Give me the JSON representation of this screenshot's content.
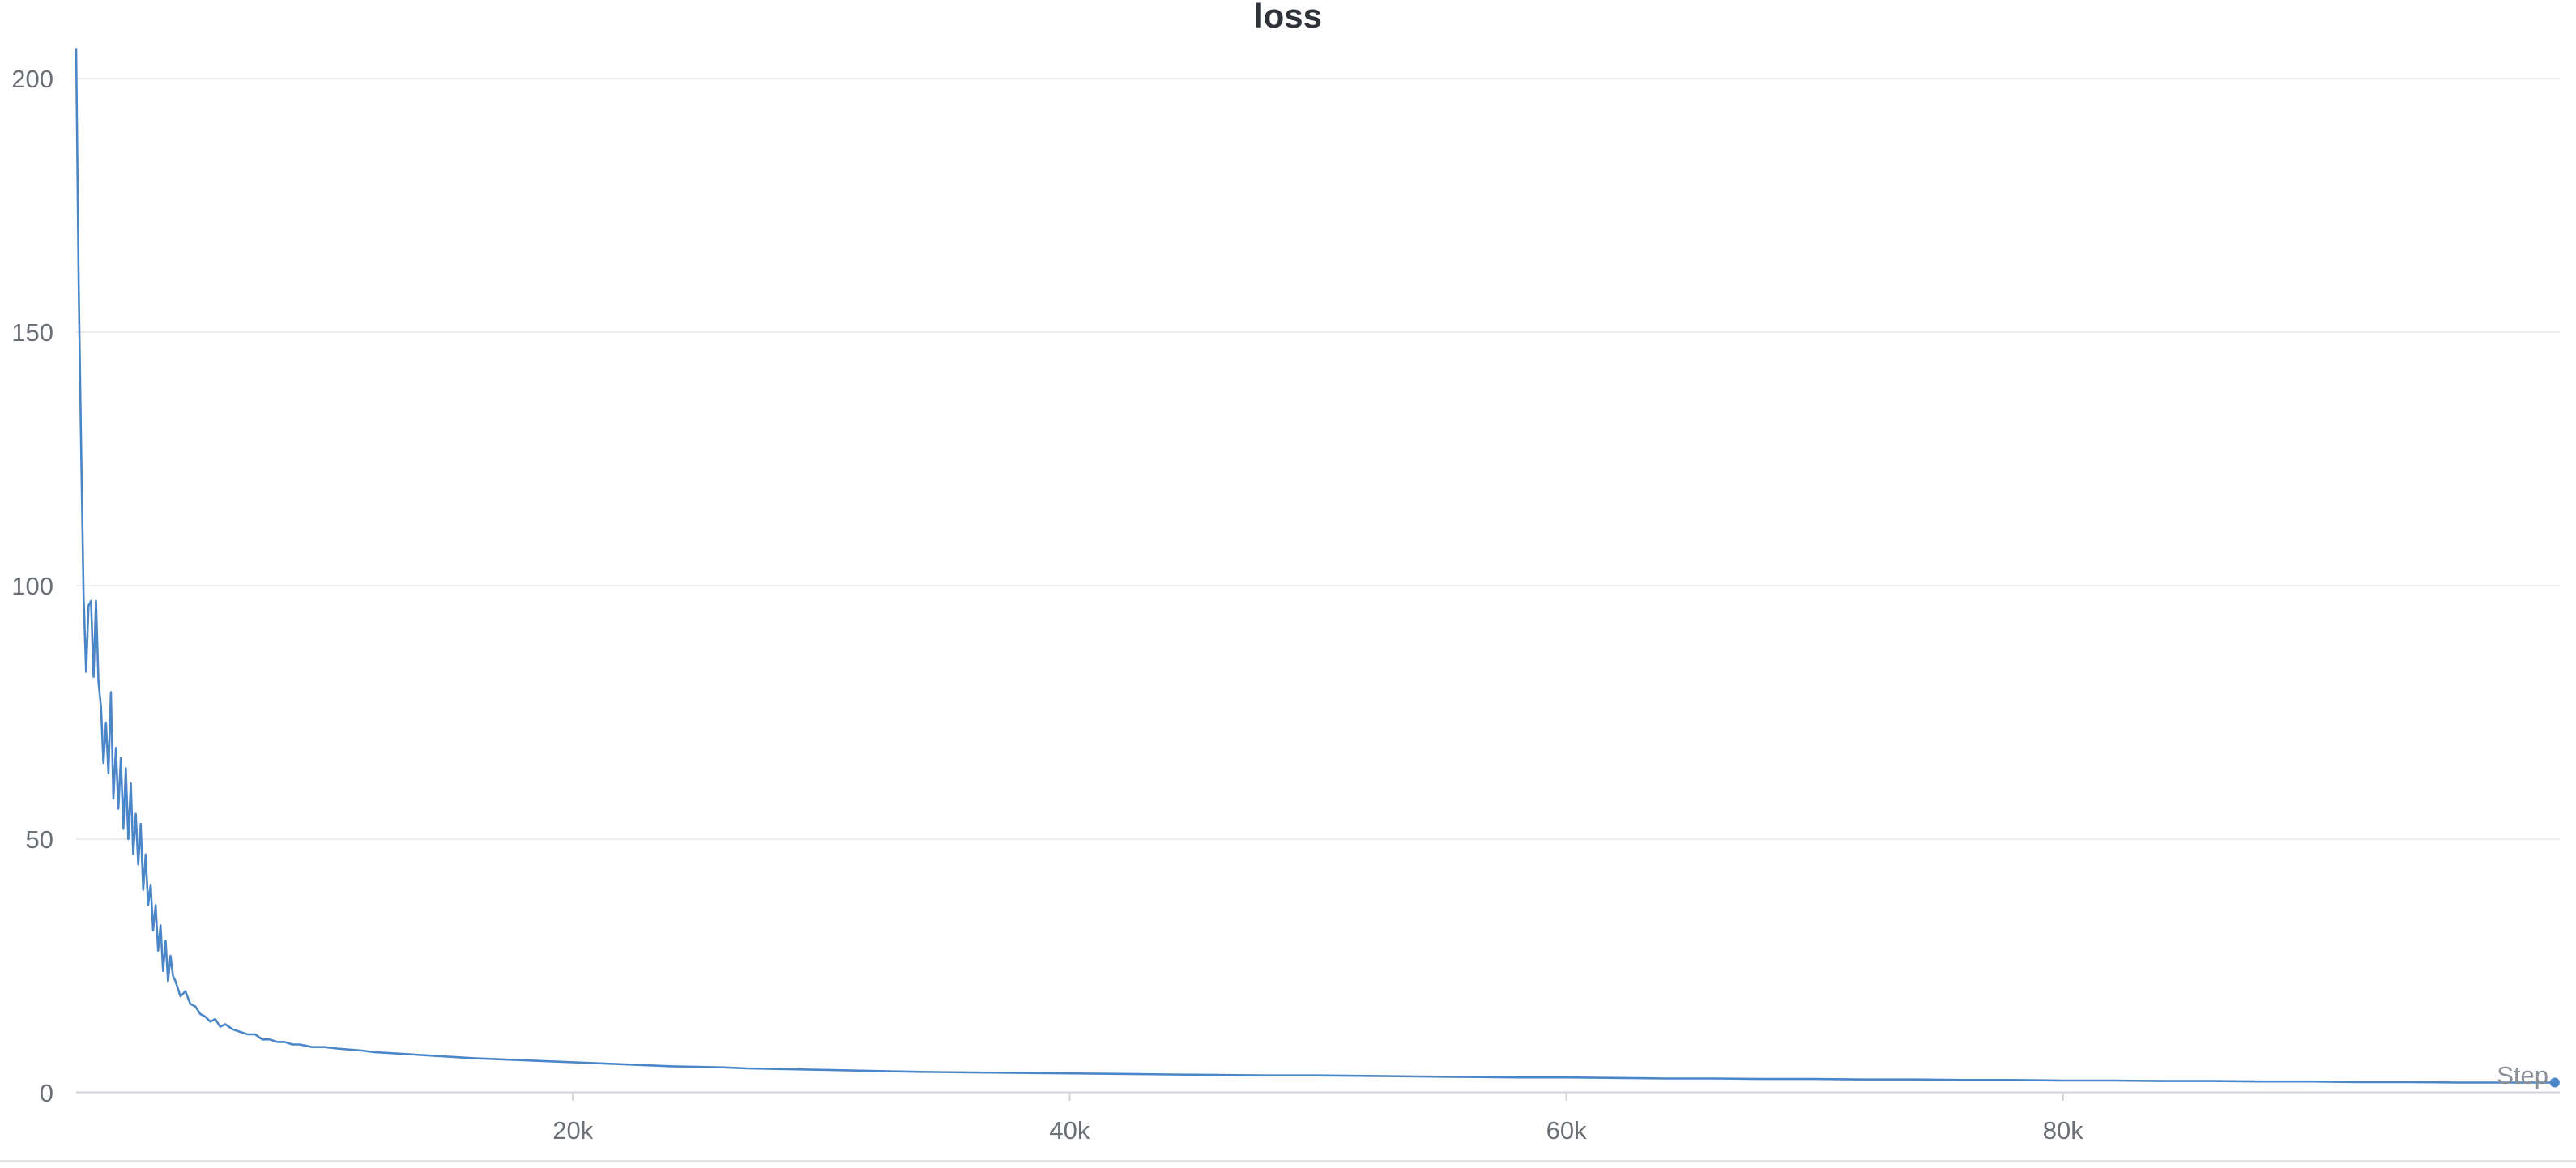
{
  "chart_data": {
    "type": "line",
    "title": "loss",
    "xlabel": "Step",
    "ylabel": "",
    "xlim": [
      0,
      100000
    ],
    "ylim": [
      0,
      200
    ],
    "x_ticks": [
      20000,
      40000,
      60000,
      80000
    ],
    "x_tick_labels": [
      "20k",
      "40k",
      "60k",
      "80k"
    ],
    "y_ticks": [
      0,
      50,
      100,
      150,
      200
    ],
    "y_tick_labels": [
      "0",
      "50",
      "100",
      "150",
      "200"
    ],
    "grid": true,
    "legend": "none",
    "series": [
      {
        "color": "#4a86c8",
        "x": [
          0,
          100,
          200,
          300,
          400,
          500,
          600,
          700,
          800,
          900,
          1000,
          1100,
          1200,
          1300,
          1400,
          1500,
          1600,
          1700,
          1800,
          1900,
          2000,
          2100,
          2200,
          2300,
          2400,
          2500,
          2600,
          2700,
          2800,
          2900,
          3000,
          3100,
          3200,
          3300,
          3400,
          3500,
          3600,
          3700,
          3800,
          3900,
          4000,
          4200,
          4400,
          4600,
          4800,
          5000,
          5200,
          5400,
          5600,
          5800,
          6000,
          6300,
          6600,
          6900,
          7200,
          7500,
          7800,
          8100,
          8400,
          8700,
          9000,
          9500,
          10000,
          10500,
          11000,
          11500,
          12000,
          13000,
          14000,
          15000,
          16000,
          17000,
          18000,
          19000,
          20000,
          21000,
          22000,
          23000,
          24000,
          25000,
          26000,
          27000,
          28000,
          29000,
          30000,
          32000,
          34000,
          36000,
          38000,
          40000,
          42000,
          44000,
          46000,
          48000,
          50000,
          52000,
          54000,
          56000,
          58000,
          60000,
          62000,
          64000,
          66000,
          68000,
          70000,
          72000,
          74000,
          76000,
          78000,
          80000,
          82000,
          84000,
          86000,
          88000,
          90000,
          92000,
          94000,
          96000,
          98000,
          99800
        ],
        "y": [
          206,
          160,
          128,
          98,
          83,
          96,
          97,
          82,
          97,
          81,
          76,
          65,
          73,
          63,
          79,
          58,
          68,
          56,
          66,
          52,
          64,
          50,
          61,
          47,
          55,
          45,
          53,
          40,
          47,
          37,
          41,
          32,
          37,
          28,
          33,
          24,
          30,
          22,
          27,
          23,
          22,
          19,
          20,
          17.5,
          17,
          15.5,
          15,
          14,
          14.5,
          13,
          13.5,
          12.5,
          12,
          11.5,
          11.5,
          10.5,
          10.5,
          10,
          10,
          9.5,
          9.5,
          9,
          9,
          8.7,
          8.5,
          8.3,
          8,
          7.7,
          7.4,
          7.1,
          6.8,
          6.6,
          6.4,
          6.2,
          6.0,
          5.8,
          5.6,
          5.4,
          5.2,
          5.1,
          5.0,
          4.8,
          4.7,
          4.6,
          4.5,
          4.3,
          4.1,
          4.0,
          3.9,
          3.8,
          3.7,
          3.6,
          3.5,
          3.4,
          3.4,
          3.3,
          3.2,
          3.1,
          3.0,
          3.0,
          2.9,
          2.8,
          2.8,
          2.7,
          2.7,
          2.6,
          2.6,
          2.5,
          2.5,
          2.4,
          2.4,
          2.3,
          2.3,
          2.2,
          2.2,
          2.1,
          2.1,
          2.0,
          2.0,
          2.0
        ]
      }
    ]
  }
}
